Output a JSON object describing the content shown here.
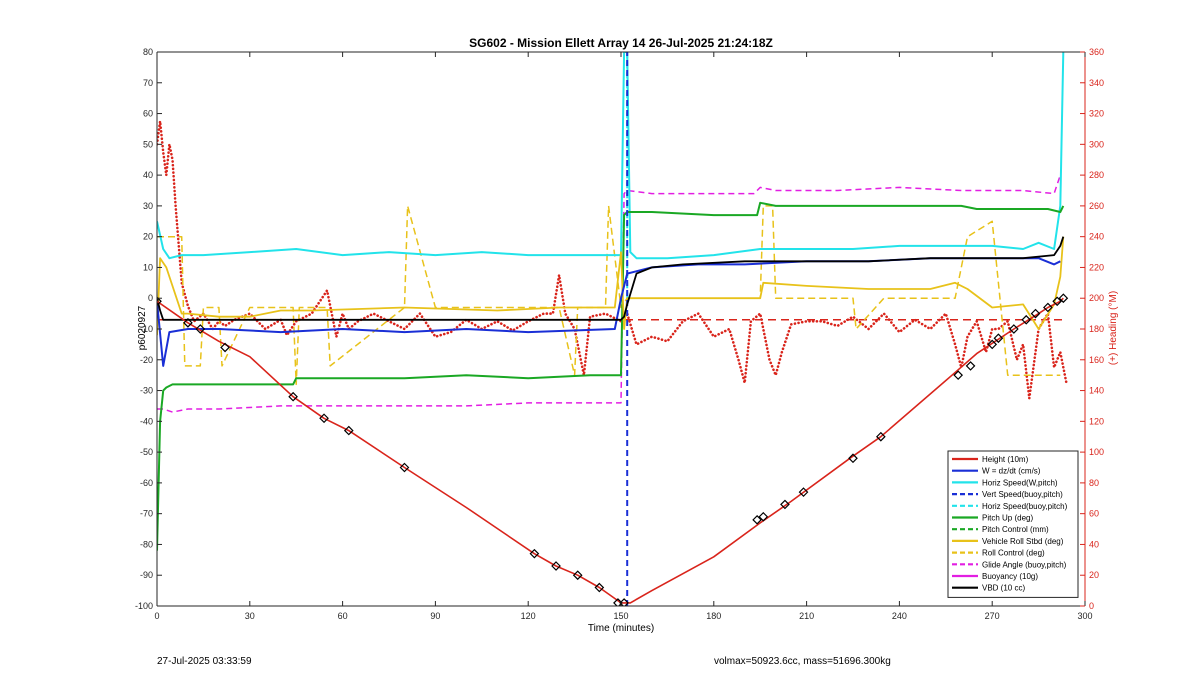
{
  "chart_data": {
    "type": "line",
    "title": "SG602 - Mission Ellett Array 14 26-Jul-2025 21:24:18Z",
    "xlabel": "Time (minutes)",
    "ylabel": "p6020927",
    "y2label": "(+) Heading (°M)",
    "xlim": [
      0,
      300
    ],
    "ylim": [
      -100,
      80
    ],
    "y2lim": [
      0,
      360
    ],
    "xticks": [
      "0",
      "30",
      "60",
      "90",
      "120",
      "150",
      "180",
      "210",
      "240",
      "270",
      "300"
    ],
    "yticks": [
      "-100",
      "-90",
      "-80",
      "-70",
      "-60",
      "-50",
      "-40",
      "-30",
      "-20",
      "-10",
      "0",
      "10",
      "20",
      "30",
      "40",
      "50",
      "60",
      "70",
      "80"
    ],
    "y2ticks": [
      "0",
      "20",
      "40",
      "60",
      "80",
      "100",
      "120",
      "140",
      "160",
      "180",
      "200",
      "220",
      "240",
      "260",
      "280",
      "300",
      "320",
      "340",
      "360"
    ],
    "grid": false,
    "legend_position": "bottom-right",
    "colors": {
      "height": "#d9241b",
      "w": "#1a2fd6",
      "horiz": "#22e3ea",
      "vert_buoy": "#1a2fd6",
      "horiz_buoy": "#22e3ea",
      "pitch": "#1aa824",
      "pitch_ctrl": "#1aa824",
      "roll": "#e8c21a",
      "roll_ctrl": "#e8c21a",
      "glide": "#e21ee2",
      "buoyancy": "#e21ee2",
      "vbd": "#000000",
      "heading": "#d9241b"
    },
    "legend": [
      {
        "name": "Height (10m)",
        "color": "#d9241b",
        "dash": false
      },
      {
        "name": "W = dz/dt (cm/s)",
        "color": "#1a2fd6",
        "dash": false
      },
      {
        "name": "Horiz Speed(W,pitch)",
        "color": "#22e3ea",
        "dash": false
      },
      {
        "name": "Vert Speed(buoy,pitch)",
        "color": "#1a2fd6",
        "dash": true
      },
      {
        "name": "Horiz Speed(buoy,pitch)",
        "color": "#22e3ea",
        "dash": true
      },
      {
        "name": "Pitch Up (deg)",
        "color": "#1aa824",
        "dash": false
      },
      {
        "name": "Pitch Control (mm)",
        "color": "#1aa824",
        "dash": true
      },
      {
        "name": "Vehicle Roll Stbd (deg)",
        "color": "#e8c21a",
        "dash": false
      },
      {
        "name": "Roll Control (deg)",
        "color": "#e8c21a",
        "dash": true
      },
      {
        "name": "Glide Angle (buoy,pitch)",
        "color": "#e21ee2",
        "dash": true
      },
      {
        "name": "Buoyancy (10g)",
        "color": "#e21ee2",
        "dash": false
      },
      {
        "name": "VBD (10 cc)",
        "color": "#000000",
        "dash": false
      }
    ],
    "series": {
      "height": {
        "x": [
          0,
          10,
          20,
          30,
          44,
          54,
          62,
          80,
          100,
          122,
          129,
          136,
          143,
          150,
          153,
          160,
          180,
          195,
          205,
          224,
          234,
          257,
          265,
          277,
          285,
          288,
          292,
          293
        ],
        "y": [
          -1,
          -8,
          -14,
          -19,
          -32,
          -39,
          -43,
          -55,
          -68,
          -83,
          -87,
          -90,
          -94,
          -99,
          -99,
          -95,
          -84,
          -73,
          -66,
          -52,
          -45,
          -25,
          -18,
          -10,
          -5,
          -3,
          -1,
          0
        ]
      },
      "w": {
        "x": [
          0,
          2,
          4,
          10,
          20,
          40,
          60,
          80,
          100,
          120,
          148,
          150,
          152,
          156,
          160,
          175,
          190,
          210,
          230,
          250,
          270,
          285,
          290,
          292
        ],
        "y": [
          -1,
          -22,
          -11,
          -10,
          -10,
          -11,
          -10,
          -11,
          -10,
          -11,
          -10,
          0,
          8,
          9,
          10,
          11,
          11,
          12,
          12,
          13,
          13,
          13,
          11,
          12
        ]
      },
      "horiz": {
        "x": [
          0,
          2,
          4,
          8,
          15,
          30,
          45,
          60,
          75,
          90,
          105,
          120,
          135,
          148,
          150,
          151,
          152,
          153,
          155,
          165,
          180,
          195,
          210,
          225,
          240,
          255,
          270,
          280,
          285,
          290,
          292,
          293
        ],
        "y": [
          25,
          16,
          13,
          14,
          14,
          15,
          16,
          14,
          15,
          14,
          15,
          14,
          14,
          14,
          14,
          80,
          80,
          15,
          13,
          13,
          14,
          16,
          16,
          16,
          17,
          17,
          17,
          16,
          18,
          16,
          30,
          80
        ]
      },
      "pitch": {
        "x": [
          0,
          1,
          2,
          3,
          5,
          20,
          40,
          44,
          45,
          60,
          80,
          100,
          120,
          140,
          148,
          150,
          151,
          152,
          160,
          180,
          194,
          195,
          200,
          220,
          260,
          265,
          280,
          288,
          292,
          293
        ],
        "y": [
          -82,
          -40,
          -30,
          -29,
          -28,
          -28,
          -28,
          -28,
          -26,
          -26,
          -26,
          -25,
          -26,
          -25,
          -25,
          -25,
          27,
          28,
          28,
          27,
          27,
          31,
          30,
          30,
          30,
          29,
          29,
          29,
          28,
          30
        ]
      },
      "roll": {
        "x": [
          0,
          1,
          3,
          8,
          10,
          20,
          30,
          40,
          46,
          50,
          80,
          110,
          130,
          148,
          150,
          151,
          152,
          160,
          180,
          195,
          196,
          210,
          230,
          250,
          258,
          262,
          270,
          280,
          285,
          290,
          292,
          293
        ],
        "y": [
          -12,
          13,
          10,
          -5,
          -5,
          -6,
          -6,
          -4,
          -4,
          -4,
          -3,
          -4,
          -3,
          -3,
          15,
          -10,
          0,
          0,
          0,
          0,
          5,
          4,
          3,
          3,
          5,
          3,
          -3,
          -2,
          -10,
          -2,
          7,
          20
        ]
      },
      "roll_ctrl": {
        "x": [
          0,
          8,
          9,
          14,
          15,
          20,
          21,
          30,
          44,
          45,
          46,
          55,
          56,
          80,
          81,
          90,
          91,
          110,
          130,
          135,
          136,
          145,
          146,
          150,
          152,
          195,
          196,
          199,
          200,
          225,
          226,
          235,
          236,
          258,
          262,
          270,
          275,
          280,
          285,
          292
        ],
        "y": [
          20,
          20,
          -22,
          -22,
          -3,
          -3,
          -22,
          -3,
          -3,
          -28,
          -3,
          -3,
          -22,
          -3,
          30,
          -3,
          -3,
          -3,
          -3,
          -25,
          -3,
          -3,
          30,
          -3,
          0,
          0,
          30,
          30,
          0,
          0,
          -10,
          0,
          0,
          0,
          20,
          25,
          -25,
          -25,
          -25,
          -25
        ]
      },
      "glide": {
        "x": [
          0,
          2,
          5,
          10,
          20,
          40,
          60,
          80,
          100,
          120,
          130,
          140,
          148,
          150,
          151,
          152,
          160,
          180,
          193,
          195,
          200,
          220,
          240,
          260,
          280,
          290,
          292
        ],
        "y": [
          -36,
          -36,
          -37,
          -36,
          -36,
          -35,
          -35,
          -35,
          -35,
          -34,
          -34,
          -34,
          -34,
          -34,
          34,
          35,
          34,
          34,
          34,
          36,
          35,
          35,
          36,
          35,
          35,
          34,
          40
        ]
      },
      "vbd": {
        "x": [
          0,
          1,
          2,
          3,
          150,
          151,
          152,
          155,
          160,
          170,
          190,
          210,
          230,
          250,
          280,
          290,
          292,
          293
        ],
        "y": [
          0,
          -4,
          -7,
          -7,
          -7,
          -6,
          -2,
          8,
          10,
          11,
          12,
          12,
          12,
          13,
          13,
          14,
          17,
          20
        ]
      },
      "heading": {
        "x": [
          0,
          1,
          2,
          3,
          4,
          5,
          6,
          8,
          10,
          12,
          15,
          18,
          20,
          22,
          25,
          30,
          35,
          40,
          42,
          45,
          50,
          55,
          58,
          60,
          62,
          65,
          70,
          75,
          80,
          85,
          90,
          95,
          100,
          105,
          110,
          115,
          120,
          125,
          128,
          130,
          132,
          135,
          138,
          140,
          145,
          150,
          152,
          155,
          160,
          165,
          170,
          175,
          180,
          185,
          188,
          190,
          192,
          195,
          198,
          200,
          202,
          205,
          210,
          215,
          220,
          225,
          230,
          235,
          240,
          245,
          250,
          255,
          258,
          260,
          262,
          265,
          268,
          270,
          272,
          275,
          278,
          280,
          282,
          285,
          288,
          290,
          292,
          294
        ],
        "y": [
          300,
          315,
          295,
          280,
          300,
          290,
          260,
          210,
          195,
          185,
          190,
          180,
          185,
          182,
          186,
          190,
          180,
          186,
          176,
          185,
          190,
          205,
          175,
          190,
          180,
          185,
          190,
          185,
          180,
          190,
          175,
          178,
          186,
          180,
          185,
          179,
          185,
          190,
          190,
          215,
          190,
          180,
          150,
          188,
          190,
          185,
          190,
          170,
          175,
          172,
          185,
          190,
          175,
          180,
          160,
          145,
          185,
          190,
          160,
          150,
          165,
          183,
          185,
          185,
          182,
          188,
          180,
          190,
          178,
          186,
          180,
          190,
          170,
          155,
          175,
          185,
          165,
          180,
          180,
          185,
          160,
          170,
          135,
          180,
          190,
          155,
          165,
          145
        ]
      },
      "vert_buoy": {
        "x": [
          152,
          152
        ],
        "y": [
          -100,
          80
        ]
      },
      "horiz_buoy": {
        "x": [
          152,
          152
        ],
        "y": [
          0,
          80
        ]
      }
    },
    "markers": {
      "x": [
        0,
        10,
        14,
        22,
        44,
        54,
        62,
        80,
        122,
        129,
        136,
        143,
        149,
        151,
        194,
        196,
        203,
        209,
        225,
        234,
        259,
        263,
        270,
        272,
        277,
        281,
        284,
        288,
        291,
        293
      ],
      "y": [
        -1,
        -8,
        -10,
        -16,
        -32,
        -39,
        -43,
        -55,
        -83,
        -87,
        -90,
        -94,
        -99,
        -99,
        -72,
        -71,
        -67,
        -63,
        -52,
        -45,
        -25,
        -22,
        -15,
        -13,
        -10,
        -7,
        -5,
        -3,
        -1,
        0
      ]
    }
  },
  "footer": {
    "left": "27-Jul-2025 03:33:59",
    "right": "volmax=50923.6cc, mass=51696.300kg"
  }
}
